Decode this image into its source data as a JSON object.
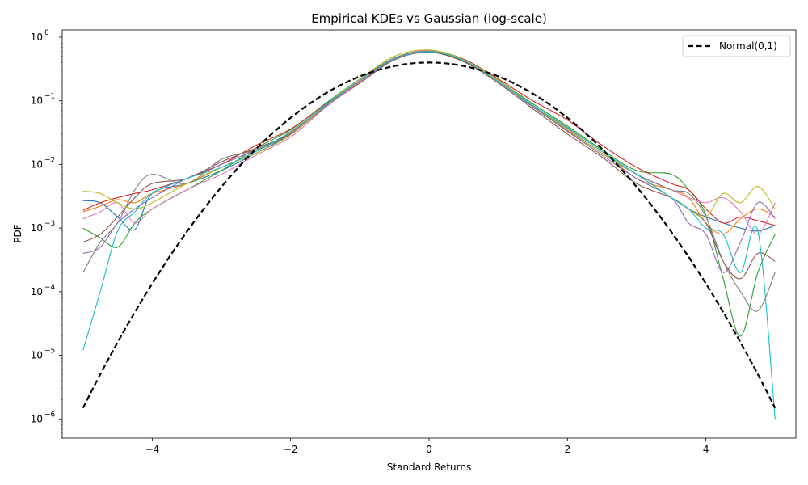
{
  "chart_data": {
    "type": "line",
    "title": "Empirical KDEs vs Gaussian (log-scale)",
    "xlabel": "Standard Returns",
    "ylabel": "PDF",
    "xlim": [
      -5.3,
      5.3
    ],
    "ylim": [
      5e-07,
      1.3
    ],
    "yscale": "log",
    "x_ticks": [
      -4,
      -2,
      0,
      2,
      4
    ],
    "x_tick_labels": [
      "−4",
      "−2",
      "0",
      "2",
      "4"
    ],
    "y_ticks": [
      1e-06,
      1e-05,
      0.0001,
      0.001,
      0.01,
      0.1,
      1
    ],
    "y_tick_labels": [
      [
        "10",
        "−6"
      ],
      [
        "10",
        "−5"
      ],
      [
        "10",
        "−4"
      ],
      [
        "10",
        "−3"
      ],
      [
        "10",
        "−2"
      ],
      [
        "10",
        "−1"
      ],
      [
        "10",
        "0"
      ]
    ],
    "grid": false,
    "legend": {
      "placement": "top-right",
      "entries": [
        "Normal(0,1)"
      ]
    },
    "reference": {
      "name": "Normal(0,1)",
      "style": "dashed",
      "color": "#000000",
      "mean": 0,
      "std": 1,
      "x_range": [
        -5,
        5
      ]
    },
    "kde_x": [
      -5,
      -4.75,
      -4.5,
      -4.25,
      -4,
      -3.5,
      -3,
      -2.5,
      -2,
      -1.5,
      -1,
      -0.5,
      0,
      0.5,
      1,
      1.5,
      2,
      2.5,
      3,
      3.5,
      3.75,
      4,
      4.25,
      4.5,
      4.75,
      5
    ],
    "series": [
      {
        "color": "#1f77b4",
        "values": [
          0.0027,
          0.0025,
          0.0015,
          0.00095,
          0.0035,
          0.005,
          0.008,
          0.015,
          0.03,
          0.08,
          0.2,
          0.45,
          0.58,
          0.42,
          0.2,
          0.08,
          0.035,
          0.015,
          0.007,
          0.003,
          0.002,
          0.0015,
          0.0012,
          0.001,
          0.0009,
          0.0011
        ]
      },
      {
        "color": "#ff7f0e",
        "values": [
          0.0018,
          0.0022,
          0.0028,
          0.0025,
          0.0035,
          0.005,
          0.009,
          0.016,
          0.032,
          0.085,
          0.21,
          0.46,
          0.6,
          0.44,
          0.21,
          0.085,
          0.037,
          0.016,
          0.006,
          0.004,
          0.003,
          0.0012,
          0.0008,
          0.0014,
          0.002,
          0.0015
        ]
      },
      {
        "color": "#2ca02c",
        "values": [
          0.001,
          0.0007,
          0.0005,
          0.0012,
          0.002,
          0.004,
          0.008,
          0.018,
          0.035,
          0.09,
          0.22,
          0.47,
          0.62,
          0.45,
          0.21,
          0.09,
          0.04,
          0.017,
          0.008,
          0.007,
          0.004,
          0.0016,
          0.00016,
          2e-05,
          0.0002,
          0.0008
        ]
      },
      {
        "color": "#d62728",
        "values": [
          0.0019,
          0.0025,
          0.003,
          0.0035,
          0.004,
          0.006,
          0.01,
          0.02,
          0.036,
          0.088,
          0.2,
          0.44,
          0.6,
          0.45,
          0.22,
          0.1,
          0.05,
          0.02,
          0.009,
          0.005,
          0.004,
          0.002,
          0.0012,
          0.0015,
          0.0013,
          0.0011
        ]
      },
      {
        "color": "#9467bd",
        "values": [
          0.0004,
          0.0005,
          0.0012,
          0.002,
          0.003,
          0.006,
          0.01,
          0.017,
          0.031,
          0.082,
          0.2,
          0.45,
          0.61,
          0.43,
          0.2,
          0.08,
          0.033,
          0.014,
          0.006,
          0.003,
          0.0012,
          0.0008,
          0.0002,
          0.0006,
          0.0025,
          0.0014
        ]
      },
      {
        "color": "#8c564b",
        "values": [
          0.0006,
          0.0008,
          0.0015,
          0.003,
          0.005,
          0.006,
          0.011,
          0.018,
          0.03,
          0.08,
          0.19,
          0.44,
          0.58,
          0.41,
          0.19,
          0.075,
          0.03,
          0.013,
          0.005,
          0.003,
          0.002,
          0.0012,
          0.0003,
          0.00016,
          0.0004,
          0.0003
        ]
      },
      {
        "color": "#e377c2",
        "values": [
          0.0014,
          0.0018,
          0.0025,
          0.0012,
          0.002,
          0.004,
          0.007,
          0.014,
          0.027,
          0.078,
          0.2,
          0.46,
          0.62,
          0.43,
          0.2,
          0.083,
          0.036,
          0.015,
          0.007,
          0.004,
          0.003,
          0.0025,
          0.003,
          0.0018,
          0.0008,
          0.0025
        ]
      },
      {
        "color": "#7f7f7f",
        "values": [
          0.0002,
          0.0006,
          0.0012,
          0.004,
          0.007,
          0.005,
          0.012,
          0.017,
          0.03,
          0.08,
          0.21,
          0.47,
          0.6,
          0.44,
          0.21,
          0.08,
          0.034,
          0.015,
          0.007,
          0.004,
          0.0035,
          0.0015,
          0.0003,
          0.0001,
          5e-05,
          0.0002
        ]
      },
      {
        "color": "#bcbd22",
        "values": [
          0.0038,
          0.0035,
          0.0025,
          0.002,
          0.0025,
          0.005,
          0.009,
          0.015,
          0.029,
          0.085,
          0.22,
          0.5,
          0.63,
          0.44,
          0.21,
          0.085,
          0.035,
          0.015,
          0.007,
          0.003,
          0.002,
          0.0015,
          0.0035,
          0.0025,
          0.0045,
          0.002
        ]
      },
      {
        "color": "#17becf",
        "values": [
          1.2e-05,
          0.0001,
          0.0009,
          0.0018,
          0.0035,
          0.006,
          0.009,
          0.016,
          0.033,
          0.085,
          0.21,
          0.45,
          0.59,
          0.43,
          0.2,
          0.085,
          0.038,
          0.016,
          0.007,
          0.003,
          0.002,
          0.001,
          0.0008,
          0.0002,
          0.0009,
          1e-06
        ]
      }
    ]
  }
}
